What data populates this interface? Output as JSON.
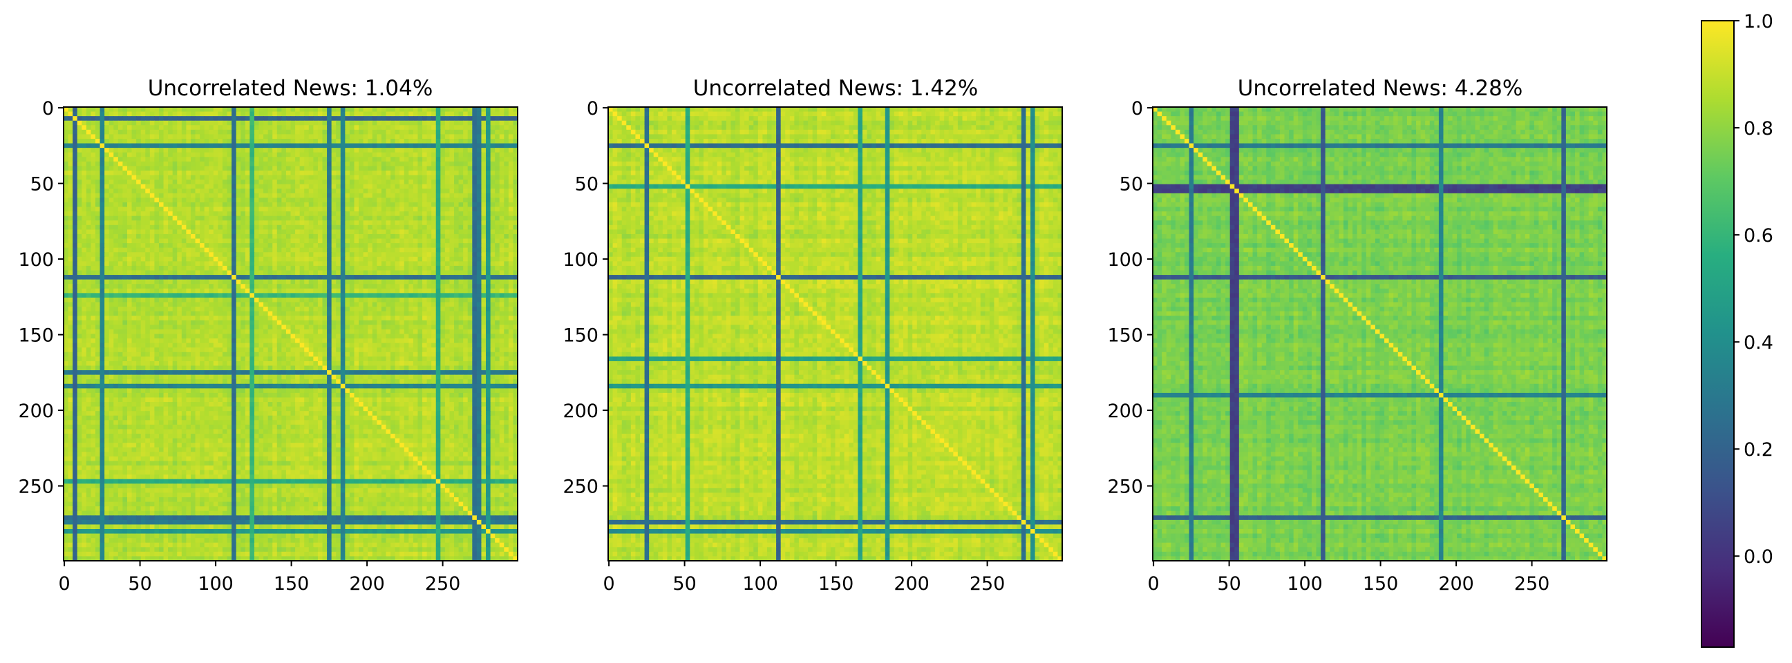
{
  "chart_data": [
    {
      "type": "heatmap",
      "title": "Uncorrelated News: 1.04%",
      "xticks": [
        "0",
        "50",
        "100",
        "150",
        "200",
        "250"
      ],
      "yticks": [
        "0",
        "50",
        "100",
        "150",
        "200",
        "250"
      ],
      "xlim": [
        0,
        299
      ],
      "ylim": [
        299,
        0
      ],
      "matrix_size": 300,
      "base_correlation": 0.87,
      "diagonal_value": 1.0,
      "low_correlation_indices": [
        8,
        25,
        113,
        125,
        175,
        183,
        248,
        271,
        274,
        280
      ],
      "low_correlation_values": [
        0.2,
        0.35,
        0.25,
        0.6,
        0.3,
        0.35,
        0.55,
        0.25,
        0.3,
        0.45
      ]
    },
    {
      "type": "heatmap",
      "title": "Uncorrelated News: 1.42%",
      "xticks": [
        "0",
        "50",
        "100",
        "150",
        "200",
        "250"
      ],
      "yticks": [
        "0",
        "50",
        "100",
        "150",
        "200",
        "250"
      ],
      "xlim": [
        0,
        299
      ],
      "ylim": [
        299,
        0
      ],
      "matrix_size": 300,
      "base_correlation": 0.88,
      "diagonal_value": 1.0,
      "low_correlation_indices": [
        25,
        52,
        113,
        167,
        183,
        273,
        280
      ],
      "low_correlation_values": [
        0.25,
        0.55,
        0.2,
        0.5,
        0.45,
        0.25,
        0.4
      ]
    },
    {
      "type": "heatmap",
      "title": "Uncorrelated News: 4.28%",
      "xticks": [
        "0",
        "50",
        "100",
        "150",
        "200",
        "250"
      ],
      "yticks": [
        "0",
        "50",
        "100",
        "150",
        "200",
        "250"
      ],
      "xlim": [
        0,
        299
      ],
      "ylim": [
        299,
        0
      ],
      "matrix_size": 300,
      "base_correlation": 0.76,
      "diagonal_value": 1.0,
      "low_correlation_indices": [
        24,
        52,
        55,
        113,
        190,
        272
      ],
      "low_correlation_values": [
        0.3,
        0.05,
        0.05,
        0.15,
        0.35,
        0.2
      ]
    }
  ],
  "colorbar": {
    "colormap": "viridis",
    "range": [
      -0.17,
      1.0
    ],
    "ticks": [
      "1.0",
      "0.8",
      "0.6",
      "0.4",
      "0.2",
      "0.0"
    ],
    "tick_values": [
      1.0,
      0.8,
      0.6,
      0.4,
      0.2,
      0.0
    ]
  }
}
